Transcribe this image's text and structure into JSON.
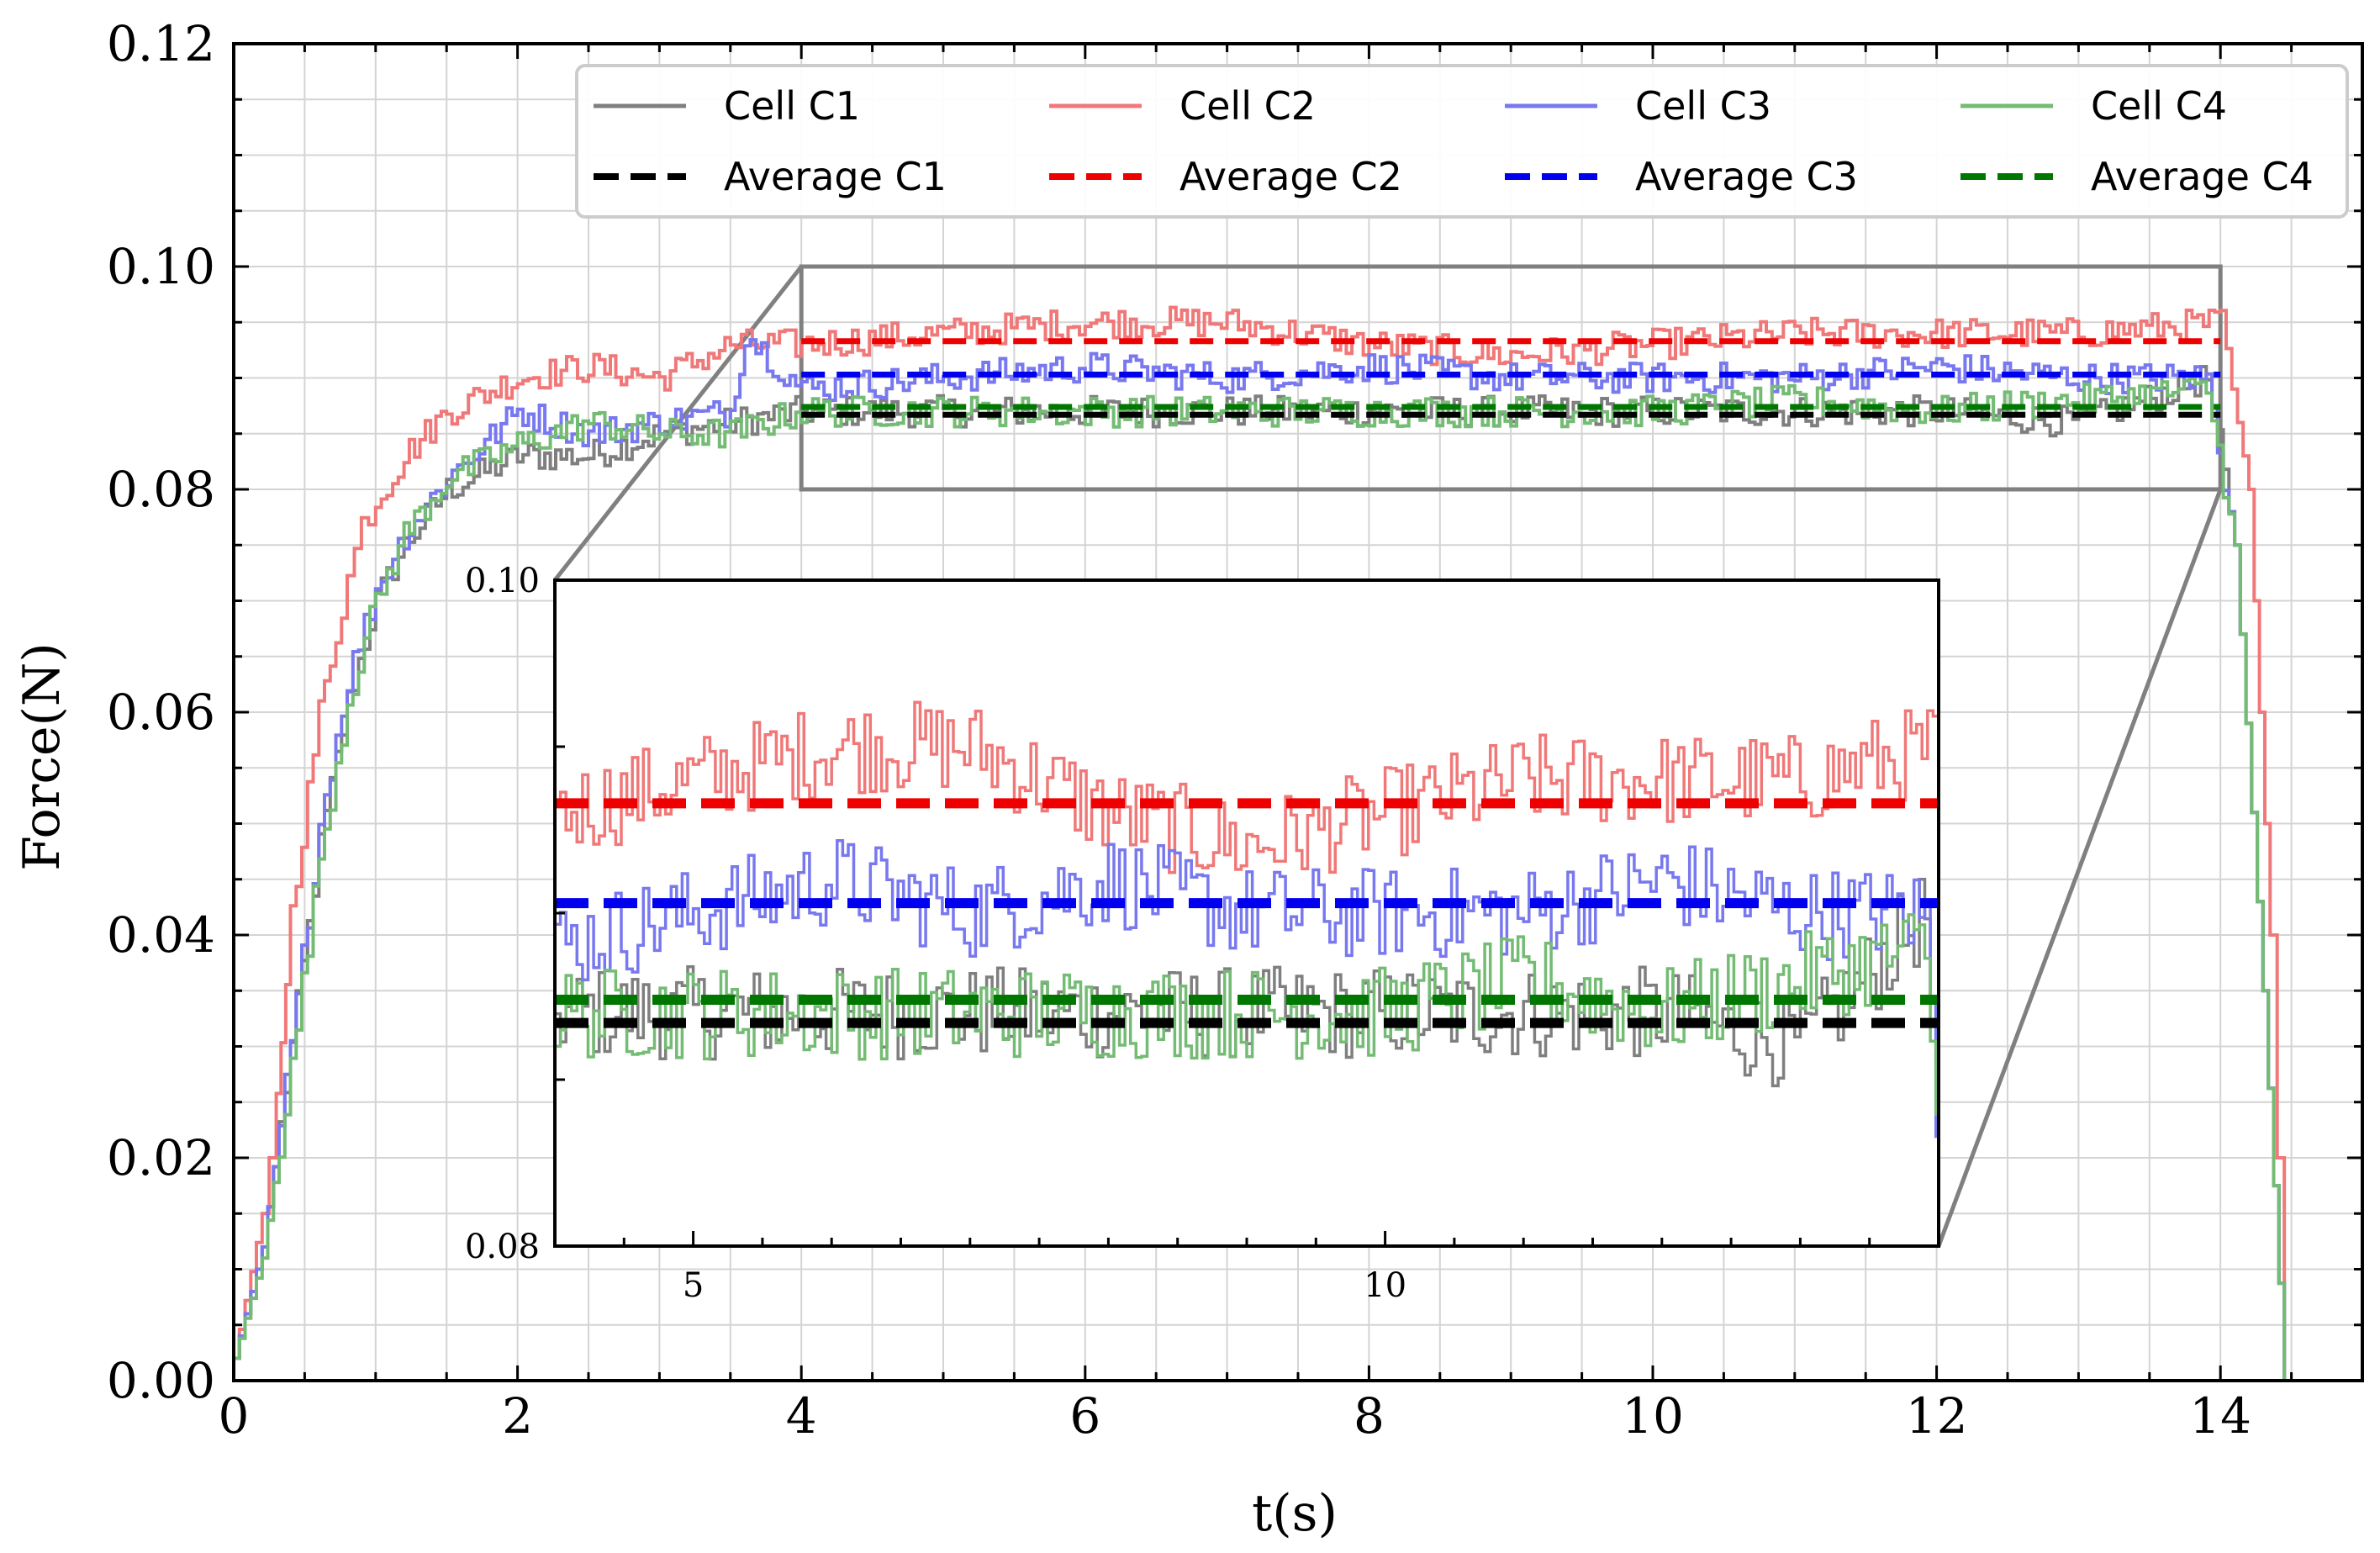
{
  "chart_data": {
    "type": "line",
    "xlabel": "t(s)",
    "ylabel": "Force(N)",
    "xlim": [
      0,
      15
    ],
    "ylim": [
      0,
      0.12
    ],
    "xticks": [
      "0",
      "2",
      "4",
      "6",
      "8",
      "10",
      "12",
      "14"
    ],
    "yticks": [
      "0.00",
      "0.02",
      "0.04",
      "0.06",
      "0.08",
      "0.10",
      "0.12"
    ],
    "grid": true,
    "legend_position": "top-right",
    "series": [
      {
        "name": "Cell C1",
        "color": "#7f7f7f",
        "x": [
          0,
          0.2,
          0.4,
          0.6,
          0.8,
          1.0,
          1.2,
          1.5,
          2.0,
          2.5,
          3.0,
          3.5,
          4.0,
          5,
          6,
          7,
          8,
          9,
          10,
          11,
          12,
          13,
          13.9,
          14.1,
          14.3,
          14.45,
          14.6,
          15
        ],
        "y": [
          0.002,
          0.012,
          0.03,
          0.048,
          0.061,
          0.07,
          0.075,
          0.08,
          0.083,
          0.083,
          0.085,
          0.086,
          0.087,
          0.087,
          0.087,
          0.087,
          0.087,
          0.087,
          0.087,
          0.087,
          0.087,
          0.086,
          0.09,
          0.075,
          0.035,
          0.0,
          0.0,
          0.0
        ]
      },
      {
        "name": "Cell C2",
        "color": "#f07878",
        "x": [
          0,
          0.2,
          0.3,
          0.4,
          0.6,
          0.8,
          0.9,
          1.0,
          1.2,
          1.5,
          2.0,
          2.5,
          3.0,
          3.5,
          4.0,
          5,
          6,
          7,
          8,
          9,
          10,
          11,
          12,
          13,
          14.0,
          14.2,
          14.35,
          14.45,
          14.6,
          15
        ],
        "y": [
          0.002,
          0.015,
          0.025,
          0.042,
          0.06,
          0.072,
          0.077,
          0.079,
          0.083,
          0.087,
          0.09,
          0.091,
          0.09,
          0.093,
          0.093,
          0.094,
          0.095,
          0.095,
          0.093,
          0.092,
          0.093,
          0.094,
          0.094,
          0.094,
          0.095,
          0.08,
          0.04,
          0.0,
          0.0,
          0.0
        ]
      },
      {
        "name": "Cell C3",
        "color": "#7878ef",
        "x": [
          0,
          0.2,
          0.4,
          0.6,
          0.8,
          1.0,
          1.2,
          1.5,
          2.0,
          2.5,
          3.0,
          3.5,
          3.6,
          4.0,
          5,
          6,
          7,
          8,
          9,
          10,
          11,
          12,
          13,
          13.9,
          14.1,
          14.3,
          14.45,
          14.6,
          15
        ],
        "y": [
          0.002,
          0.012,
          0.03,
          0.05,
          0.063,
          0.071,
          0.076,
          0.081,
          0.087,
          0.085,
          0.086,
          0.087,
          0.094,
          0.089,
          0.09,
          0.091,
          0.09,
          0.091,
          0.09,
          0.09,
          0.09,
          0.091,
          0.09,
          0.09,
          0.075,
          0.035,
          0.0,
          0.0,
          0.0
        ]
      },
      {
        "name": "Cell C4",
        "color": "#74bb74",
        "x": [
          0,
          0.2,
          0.4,
          0.6,
          0.8,
          1.0,
          1.2,
          1.5,
          2.0,
          2.5,
          3.0,
          3.5,
          4.0,
          5,
          6,
          7,
          8,
          9,
          10,
          11,
          12,
          13,
          13.9,
          14.1,
          14.3,
          14.45,
          14.6,
          15
        ],
        "y": [
          0.002,
          0.011,
          0.028,
          0.047,
          0.061,
          0.07,
          0.076,
          0.081,
          0.084,
          0.086,
          0.085,
          0.085,
          0.087,
          0.087,
          0.087,
          0.087,
          0.087,
          0.087,
          0.087,
          0.088,
          0.087,
          0.088,
          0.089,
          0.075,
          0.035,
          0.0,
          0.0,
          0.0
        ]
      },
      {
        "name": "Average C1",
        "color": "#000000",
        "dashed": true,
        "x": [
          4,
          14
        ],
        "y": [
          0.0867,
          0.0867
        ]
      },
      {
        "name": "Average C2",
        "color": "#ee0000",
        "dashed": true,
        "x": [
          4,
          14
        ],
        "y": [
          0.0933,
          0.0933
        ]
      },
      {
        "name": "Average C3",
        "color": "#0000ee",
        "dashed": true,
        "x": [
          4,
          14
        ],
        "y": [
          0.0903,
          0.0903
        ]
      },
      {
        "name": "Average C4",
        "color": "#007700",
        "dashed": true,
        "x": [
          4,
          14
        ],
        "y": [
          0.0874,
          0.0874
        ]
      }
    ],
    "legend": {
      "entries": [
        "Cell C1",
        "Cell C2",
        "Cell C3",
        "Cell C4",
        "Average C1",
        "Average C2",
        "Average C3",
        "Average C4"
      ]
    },
    "inset": {
      "xlim": [
        4,
        14
      ],
      "ylim": [
        0.08,
        0.1
      ],
      "xticks": [
        "5",
        "10"
      ],
      "yticks": [
        "0.08",
        "0.10"
      ]
    }
  }
}
